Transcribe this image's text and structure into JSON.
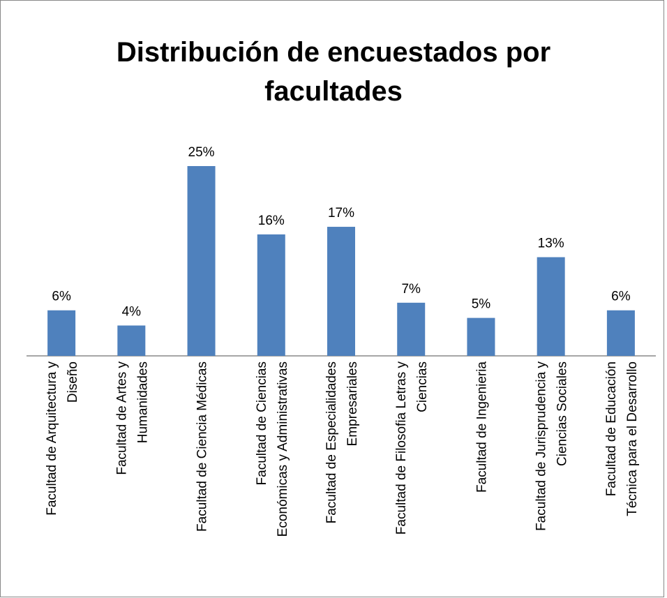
{
  "chart_data": {
    "type": "bar",
    "title": "Distribución de encuestados por\nfacultades",
    "categories": [
      "Facultad de Arquitectura y\nDiseño",
      "Facultad de Artes y\nHumanidades",
      "Facultad de Ciencia Médicas",
      "Facultad de Ciencias\nEconómicas y Administrativas",
      "Facultad de Especialidades\nEmpresariales",
      "Facultad de Filosofia Letras y\nCiencias",
      "Facultad de Ingenieria",
      "Facultad de Jurisprudencia y\nCiencias Sociales",
      "Facultad de Educación\nTécnica para el Desarrollo"
    ],
    "values": [
      6,
      4,
      25,
      16,
      17,
      7,
      5,
      13,
      6
    ],
    "value_labels": [
      "6%",
      "4%",
      "25%",
      "16%",
      "17%",
      "7%",
      "5%",
      "13%",
      "6%"
    ],
    "color": "#4f81bd"
  }
}
